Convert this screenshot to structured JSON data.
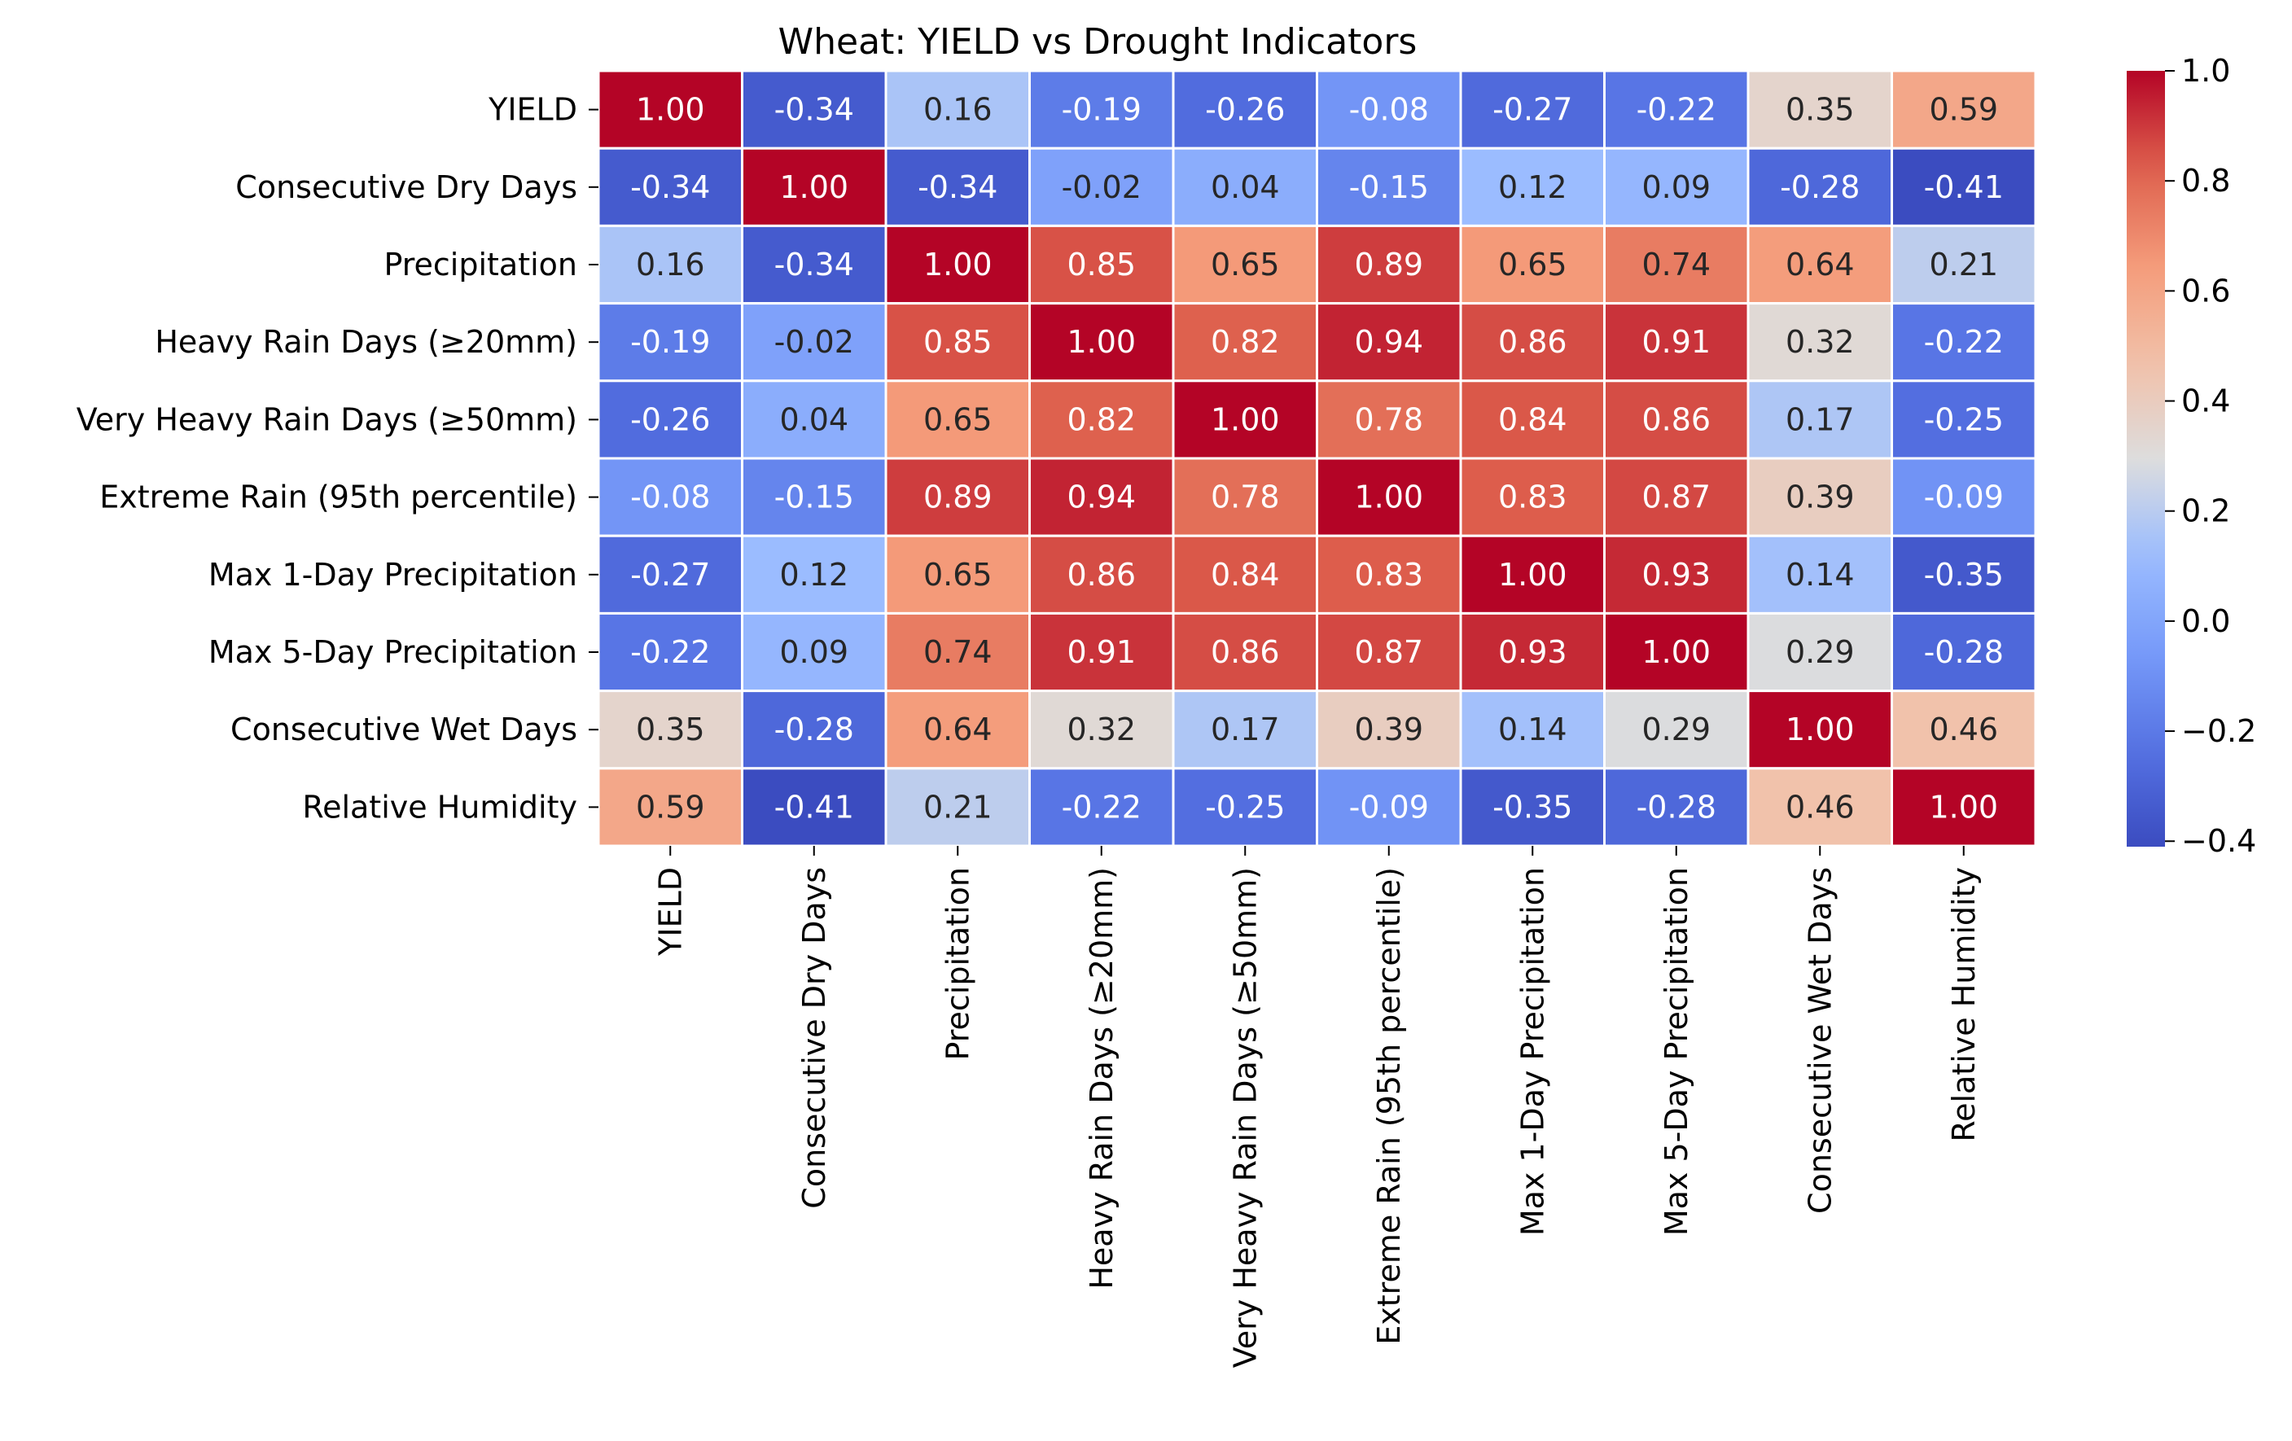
{
  "chart_data": {
    "type": "heatmap",
    "title": "Wheat: YIELD vs Drought Indicators",
    "xlabel": "",
    "ylabel": "",
    "labels": [
      "YIELD",
      "Consecutive Dry Days",
      "Precipitation",
      "Heavy Rain Days (≥20mm)",
      "Very Heavy Rain Days (≥50mm)",
      "Extreme Rain (95th percentile)",
      "Max 1-Day Precipitation",
      "Max 5-Day Precipitation",
      "Consecutive Wet Days",
      "Relative Humidity"
    ],
    "matrix": [
      [
        1.0,
        -0.34,
        0.16,
        -0.19,
        -0.26,
        -0.08,
        -0.27,
        -0.22,
        0.35,
        0.59
      ],
      [
        -0.34,
        1.0,
        -0.34,
        -0.02,
        0.04,
        -0.15,
        0.12,
        0.09,
        -0.28,
        -0.41
      ],
      [
        0.16,
        -0.34,
        1.0,
        0.85,
        0.65,
        0.89,
        0.65,
        0.74,
        0.64,
        0.21
      ],
      [
        -0.19,
        -0.02,
        0.85,
        1.0,
        0.82,
        0.94,
        0.86,
        0.91,
        0.32,
        -0.22
      ],
      [
        -0.26,
        0.04,
        0.65,
        0.82,
        1.0,
        0.78,
        0.84,
        0.86,
        0.17,
        -0.25
      ],
      [
        -0.08,
        -0.15,
        0.89,
        0.94,
        0.78,
        1.0,
        0.83,
        0.87,
        0.39,
        -0.09
      ],
      [
        -0.27,
        0.12,
        0.65,
        0.86,
        0.84,
        0.83,
        1.0,
        0.93,
        0.14,
        -0.35
      ],
      [
        -0.22,
        0.09,
        0.74,
        0.91,
        0.86,
        0.87,
        0.93,
        1.0,
        0.29,
        -0.28
      ],
      [
        0.35,
        -0.28,
        0.64,
        0.32,
        0.17,
        0.39,
        0.14,
        0.29,
        1.0,
        0.46
      ],
      [
        0.59,
        -0.41,
        0.21,
        -0.22,
        -0.25,
        -0.09,
        -0.35,
        -0.28,
        0.46,
        1.0
      ]
    ],
    "value_format": "2 decimals",
    "colormap": "coolwarm",
    "vmin": -0.41,
    "vmax": 1.0,
    "colorbar_ticks": [
      -0.4,
      -0.2,
      0.0,
      0.2,
      0.4,
      0.6,
      0.8,
      1.0
    ],
    "colorbar_tick_labels": [
      "−0.4",
      "−0.2",
      "0.0",
      "0.2",
      "0.4",
      "0.6",
      "0.8",
      "1.0"
    ],
    "cell_border_color": "#ffffff",
    "grid": false,
    "legend": "colorbar-right"
  }
}
